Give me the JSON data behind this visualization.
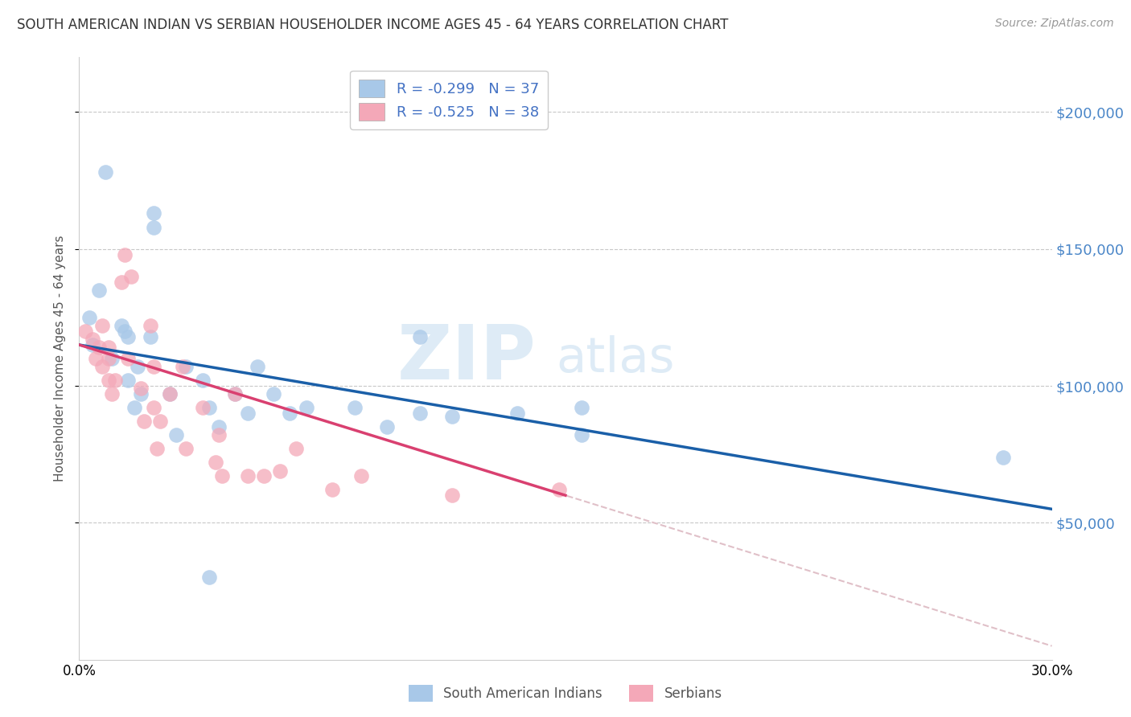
{
  "title": "SOUTH AMERICAN INDIAN VS SERBIAN HOUSEHOLDER INCOME AGES 45 - 64 YEARS CORRELATION CHART",
  "source": "Source: ZipAtlas.com",
  "ylabel": "Householder Income Ages 45 - 64 years",
  "xlabel_ticks": [
    "0.0%",
    "",
    "",
    "",
    "",
    "",
    "30.0%"
  ],
  "xlabel_vals": [
    0.0,
    5.0,
    10.0,
    15.0,
    20.0,
    25.0,
    30.0
  ],
  "ytick_labels": [
    "$50,000",
    "$100,000",
    "$150,000",
    "$200,000"
  ],
  "ytick_vals": [
    50000,
    100000,
    150000,
    200000
  ],
  "watermark_zip": "ZIP",
  "watermark_atlas": "atlas",
  "legend_entry1": "R = -0.299   N = 37",
  "legend_entry2": "R = -0.525   N = 38",
  "legend_label1": "South American Indians",
  "legend_label2": "Serbians",
  "color_blue": "#a8c8e8",
  "color_pink": "#f4a8b8",
  "color_line_blue": "#1a5fa8",
  "color_line_pink": "#d94070",
  "color_dashed": "#e0c0c8",
  "blue_points_x": [
    0.3,
    0.4,
    0.6,
    0.8,
    1.0,
    1.3,
    1.4,
    1.5,
    1.5,
    1.7,
    1.8,
    1.9,
    2.2,
    2.3,
    2.3,
    2.8,
    3.0,
    3.3,
    3.8,
    4.0,
    4.3,
    4.8,
    5.2,
    5.5,
    6.0,
    6.5,
    7.0,
    8.5,
    9.5,
    10.5,
    10.5,
    11.5,
    13.5,
    15.5,
    15.5,
    28.5,
    4.0
  ],
  "blue_points_y": [
    125000,
    115000,
    135000,
    178000,
    110000,
    122000,
    120000,
    118000,
    102000,
    92000,
    107000,
    97000,
    118000,
    158000,
    163000,
    97000,
    82000,
    107000,
    102000,
    92000,
    85000,
    97000,
    90000,
    107000,
    97000,
    90000,
    92000,
    92000,
    85000,
    90000,
    118000,
    89000,
    90000,
    92000,
    82000,
    74000,
    30000
  ],
  "pink_points_x": [
    0.2,
    0.4,
    0.5,
    0.6,
    0.7,
    0.7,
    0.9,
    0.9,
    0.9,
    1.0,
    1.1,
    1.3,
    1.4,
    1.5,
    1.6,
    1.9,
    2.0,
    2.2,
    2.3,
    2.3,
    2.4,
    2.5,
    2.8,
    3.2,
    3.3,
    3.8,
    4.2,
    4.3,
    4.4,
    4.8,
    5.2,
    5.7,
    6.2,
    6.7,
    7.8,
    8.7,
    11.5,
    14.8
  ],
  "pink_points_y": [
    120000,
    117000,
    110000,
    114000,
    107000,
    122000,
    110000,
    114000,
    102000,
    97000,
    102000,
    138000,
    148000,
    110000,
    140000,
    99000,
    87000,
    122000,
    107000,
    92000,
    77000,
    87000,
    97000,
    107000,
    77000,
    92000,
    72000,
    82000,
    67000,
    97000,
    67000,
    67000,
    69000,
    77000,
    62000,
    67000,
    60000,
    62000
  ],
  "xmin": 0.0,
  "xmax": 30.0,
  "ymin": 0,
  "ymax": 220000,
  "background_color": "#ffffff",
  "grid_color": "#c8c8c8"
}
